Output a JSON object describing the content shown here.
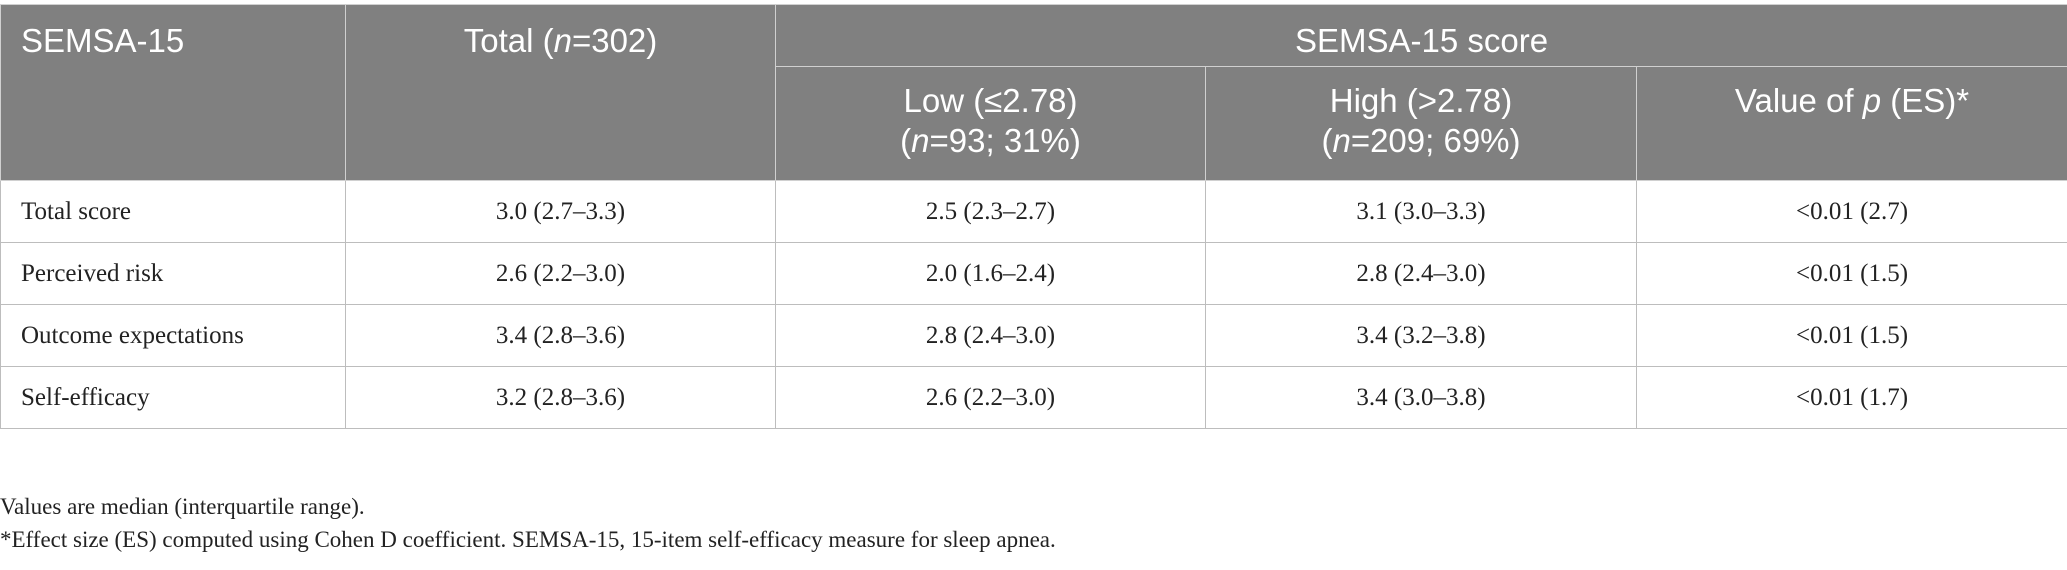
{
  "header": {
    "col0": "SEMSA-15",
    "total_prefix": "Total (",
    "total_n": "n",
    "total_suffix": "=302)",
    "group": "SEMSA-15 score",
    "low_line1": "Low (≤2.78)",
    "low_line2_n": "n",
    "low_line2_rest": "=93; 31%)",
    "high_line1": "High (>2.78)",
    "high_line2_n": "n",
    "high_line2_rest": "=209; 69%)",
    "pval_prefix": "Value of ",
    "pval_p": "p",
    "pval_suffix": " (ES)*"
  },
  "rows": [
    {
      "label": "Total score",
      "total": "3.0 (2.7–3.3)",
      "low": "2.5 (2.3–2.7)",
      "high": "3.1 (3.0–3.3)",
      "p": "<0.01 (2.7)"
    },
    {
      "label": "Perceived risk",
      "total": "2.6 (2.2–3.0)",
      "low": "2.0 (1.6–2.4)",
      "high": "2.8 (2.4–3.0)",
      "p": "<0.01 (1.5)"
    },
    {
      "label": "Outcome expectations",
      "total": "3.4 (2.8–3.6)",
      "low": "2.8 (2.4–3.0)",
      "high": "3.4 (3.2–3.8)",
      "p": "<0.01 (1.5)"
    },
    {
      "label": "Self-efficacy",
      "total": "3.2 (2.8–3.6)",
      "low": "2.6 (2.2–3.0)",
      "high": "3.4 (3.0–3.8)",
      "p": "<0.01 (1.7)"
    }
  ],
  "notes": {
    "line1": "Values are median (interquartile range).",
    "line2": "*Effect size (ES) computed using Cohen D coefficient. SEMSA-15, 15-item self-efficacy measure for sleep apnea."
  },
  "colors": {
    "header_bg": "#808080",
    "header_text": "#ffffff"
  }
}
